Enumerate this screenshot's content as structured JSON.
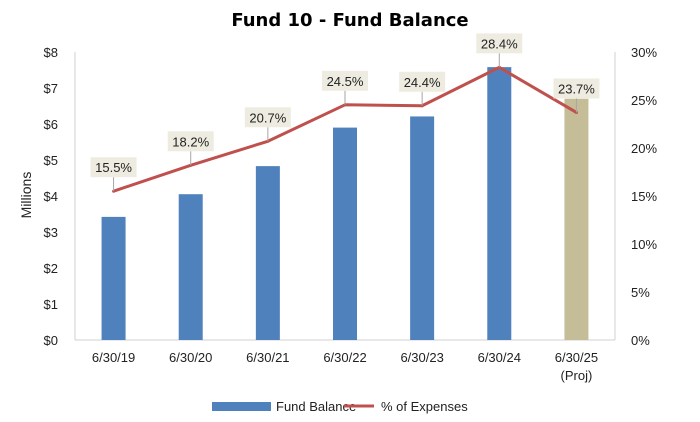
{
  "chart_data": {
    "type": "bar",
    "title": "Fund 10 - Fund Balance",
    "ylabel": "Millions",
    "categories": [
      "6/30/19",
      "6/30/20",
      "6/30/21",
      "6/30/22",
      "6/30/23",
      "6/30/24",
      "6/30/25"
    ],
    "category_sublabels": [
      "",
      "",
      "",
      "",
      "",
      "",
      "(Proj)"
    ],
    "y_ticks": [
      "$0",
      "$1",
      "$2",
      "$3",
      "$4",
      "$5",
      "$6",
      "$7",
      "$8"
    ],
    "y2_ticks": [
      "0%",
      "5%",
      "10%",
      "15%",
      "20%",
      "25%",
      "30%"
    ],
    "ylim": [
      0,
      8
    ],
    "y2lim": [
      0,
      30
    ],
    "grid": false,
    "legend_position": "bottom",
    "series": [
      {
        "name": "Fund Balance",
        "type": "bar",
        "axis": "left",
        "values": [
          3.42,
          4.05,
          4.83,
          5.9,
          6.21,
          7.58,
          6.7
        ],
        "color": "#4F81BD",
        "highlight": {
          "index": 6,
          "color": "#C4BD97"
        }
      },
      {
        "name": "% of Expenses",
        "type": "line",
        "axis": "right",
        "values": [
          15.5,
          18.2,
          20.7,
          24.5,
          24.4,
          28.4,
          23.7
        ],
        "labels": [
          "15.5%",
          "18.2%",
          "20.7%",
          "24.5%",
          "24.4%",
          "28.4%",
          "23.7%"
        ],
        "color": "#C0504D"
      }
    ],
    "label_box_color": "#EEECE1"
  }
}
